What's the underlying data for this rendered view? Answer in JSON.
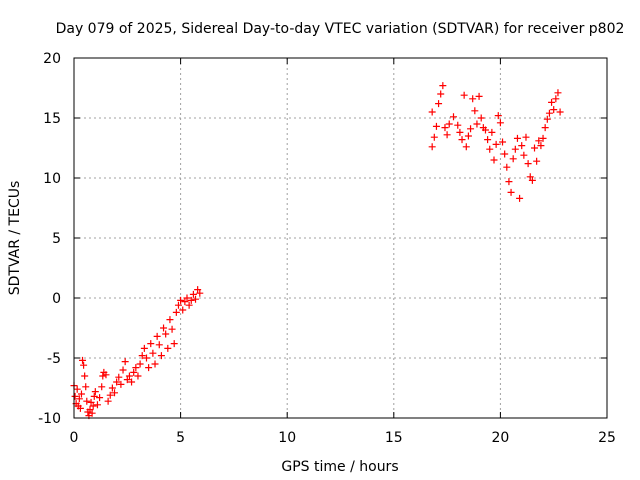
{
  "chart_data": {
    "type": "scatter",
    "title": "Day 079 of 2025, Sidereal Day-to-day VTEC variation (SDTVAR) for receiver p802",
    "xlabel": "GPS time / hours",
    "ylabel": "SDTVAR / TECUs",
    "xlim": [
      0,
      25
    ],
    "ylim": [
      -10,
      20
    ],
    "x_ticks": [
      "0",
      "5",
      "10",
      "15",
      "20",
      "25"
    ],
    "y_ticks": [
      "-10",
      "-5",
      "0",
      "5",
      "10",
      "15",
      "20"
    ],
    "grid": true,
    "marker": "+",
    "color": "#ff0000",
    "series": [
      {
        "values": [
          {
            "x": 0.0,
            "y": -7.3
          },
          {
            "x": 0.05,
            "y": -8.2
          },
          {
            "x": 0.1,
            "y": -8.8
          },
          {
            "x": 0.15,
            "y": -7.6
          },
          {
            "x": 0.2,
            "y": -9.0
          },
          {
            "x": 0.25,
            "y": -8.4
          },
          {
            "x": 0.3,
            "y": -9.2
          },
          {
            "x": 0.35,
            "y": -8.0
          },
          {
            "x": 0.4,
            "y": -5.2
          },
          {
            "x": 0.45,
            "y": -5.6
          },
          {
            "x": 0.5,
            "y": -6.5
          },
          {
            "x": 0.55,
            "y": -7.4
          },
          {
            "x": 0.6,
            "y": -8.6
          },
          {
            "x": 0.65,
            "y": -9.5
          },
          {
            "x": 0.7,
            "y": -9.8
          },
          {
            "x": 0.75,
            "y": -9.3
          },
          {
            "x": 0.8,
            "y": -8.7
          },
          {
            "x": 0.85,
            "y": -9.6
          },
          {
            "x": 0.9,
            "y": -9.0
          },
          {
            "x": 0.95,
            "y": -8.2
          },
          {
            "x": 1.0,
            "y": -7.8
          },
          {
            "x": 1.1,
            "y": -8.9
          },
          {
            "x": 1.2,
            "y": -8.3
          },
          {
            "x": 1.3,
            "y": -7.4
          },
          {
            "x": 1.35,
            "y": -6.5
          },
          {
            "x": 1.4,
            "y": -6.2
          },
          {
            "x": 1.5,
            "y": -6.4
          },
          {
            "x": 1.6,
            "y": -8.6
          },
          {
            "x": 1.7,
            "y": -8.1
          },
          {
            "x": 1.8,
            "y": -7.5
          },
          {
            "x": 1.9,
            "y": -7.9
          },
          {
            "x": 2.0,
            "y": -7.0
          },
          {
            "x": 2.1,
            "y": -6.6
          },
          {
            "x": 2.2,
            "y": -7.2
          },
          {
            "x": 2.3,
            "y": -6.0
          },
          {
            "x": 2.4,
            "y": -5.3
          },
          {
            "x": 2.5,
            "y": -6.8
          },
          {
            "x": 2.6,
            "y": -6.5
          },
          {
            "x": 2.7,
            "y": -7.0
          },
          {
            "x": 2.8,
            "y": -6.2
          },
          {
            "x": 2.9,
            "y": -5.8
          },
          {
            "x": 3.0,
            "y": -6.5
          },
          {
            "x": 3.1,
            "y": -5.5
          },
          {
            "x": 3.2,
            "y": -4.8
          },
          {
            "x": 3.3,
            "y": -4.2
          },
          {
            "x": 3.4,
            "y": -5.0
          },
          {
            "x": 3.5,
            "y": -5.8
          },
          {
            "x": 3.6,
            "y": -3.8
          },
          {
            "x": 3.7,
            "y": -4.6
          },
          {
            "x": 3.8,
            "y": -5.5
          },
          {
            "x": 3.9,
            "y": -3.2
          },
          {
            "x": 4.0,
            "y": -3.9
          },
          {
            "x": 4.1,
            "y": -4.8
          },
          {
            "x": 4.2,
            "y": -2.5
          },
          {
            "x": 4.3,
            "y": -3.0
          },
          {
            "x": 4.4,
            "y": -4.2
          },
          {
            "x": 4.5,
            "y": -1.8
          },
          {
            "x": 4.6,
            "y": -2.6
          },
          {
            "x": 4.7,
            "y": -3.8
          },
          {
            "x": 4.8,
            "y": -1.2
          },
          {
            "x": 4.9,
            "y": -0.6
          },
          {
            "x": 5.0,
            "y": -0.2
          },
          {
            "x": 5.1,
            "y": -1.0
          },
          {
            "x": 5.2,
            "y": -0.3
          },
          {
            "x": 5.3,
            "y": 0.0
          },
          {
            "x": 5.4,
            "y": -0.6
          },
          {
            "x": 5.5,
            "y": -0.2
          },
          {
            "x": 5.6,
            "y": 0.3
          },
          {
            "x": 5.7,
            "y": -0.1
          },
          {
            "x": 5.8,
            "y": 0.7
          },
          {
            "x": 5.9,
            "y": 0.4
          },
          {
            "x": 16.8,
            "y": 12.6
          },
          {
            "x": 16.8,
            "y": 15.5
          },
          {
            "x": 16.9,
            "y": 13.4
          },
          {
            "x": 17.0,
            "y": 14.3
          },
          {
            "x": 17.1,
            "y": 16.2
          },
          {
            "x": 17.2,
            "y": 17.0
          },
          {
            "x": 17.3,
            "y": 17.7
          },
          {
            "x": 17.4,
            "y": 14.2
          },
          {
            "x": 17.5,
            "y": 13.6
          },
          {
            "x": 17.6,
            "y": 14.5
          },
          {
            "x": 17.8,
            "y": 15.1
          },
          {
            "x": 18.0,
            "y": 14.4
          },
          {
            "x": 18.1,
            "y": 13.8
          },
          {
            "x": 18.2,
            "y": 13.2
          },
          {
            "x": 18.3,
            "y": 16.9
          },
          {
            "x": 18.4,
            "y": 12.6
          },
          {
            "x": 18.5,
            "y": 13.5
          },
          {
            "x": 18.6,
            "y": 14.1
          },
          {
            "x": 18.7,
            "y": 16.6
          },
          {
            "x": 18.8,
            "y": 15.6
          },
          {
            "x": 18.9,
            "y": 14.5
          },
          {
            "x": 19.0,
            "y": 16.8
          },
          {
            "x": 19.1,
            "y": 15.0
          },
          {
            "x": 19.2,
            "y": 14.2
          },
          {
            "x": 19.3,
            "y": 14.0
          },
          {
            "x": 19.4,
            "y": 13.2
          },
          {
            "x": 19.5,
            "y": 12.4
          },
          {
            "x": 19.6,
            "y": 13.8
          },
          {
            "x": 19.7,
            "y": 11.5
          },
          {
            "x": 19.8,
            "y": 12.8
          },
          {
            "x": 19.9,
            "y": 15.2
          },
          {
            "x": 20.0,
            "y": 14.6
          },
          {
            "x": 20.1,
            "y": 13.0
          },
          {
            "x": 20.2,
            "y": 12.0
          },
          {
            "x": 20.3,
            "y": 10.9
          },
          {
            "x": 20.4,
            "y": 9.7
          },
          {
            "x": 20.5,
            "y": 8.8
          },
          {
            "x": 20.6,
            "y": 11.6
          },
          {
            "x": 20.7,
            "y": 12.4
          },
          {
            "x": 20.8,
            "y": 13.3
          },
          {
            "x": 20.9,
            "y": 8.3
          },
          {
            "x": 21.0,
            "y": 12.7
          },
          {
            "x": 21.1,
            "y": 11.9
          },
          {
            "x": 21.2,
            "y": 13.4
          },
          {
            "x": 21.3,
            "y": 11.2
          },
          {
            "x": 21.4,
            "y": 10.1
          },
          {
            "x": 21.5,
            "y": 9.8
          },
          {
            "x": 21.6,
            "y": 12.5
          },
          {
            "x": 21.7,
            "y": 11.4
          },
          {
            "x": 21.8,
            "y": 13.1
          },
          {
            "x": 21.9,
            "y": 12.7
          },
          {
            "x": 22.0,
            "y": 13.3
          },
          {
            "x": 22.1,
            "y": 14.2
          },
          {
            "x": 22.2,
            "y": 14.9
          },
          {
            "x": 22.3,
            "y": 15.4
          },
          {
            "x": 22.4,
            "y": 16.3
          },
          {
            "x": 22.5,
            "y": 15.7
          },
          {
            "x": 22.6,
            "y": 16.6
          },
          {
            "x": 22.7,
            "y": 17.1
          },
          {
            "x": 22.8,
            "y": 15.5
          }
        ]
      }
    ]
  }
}
